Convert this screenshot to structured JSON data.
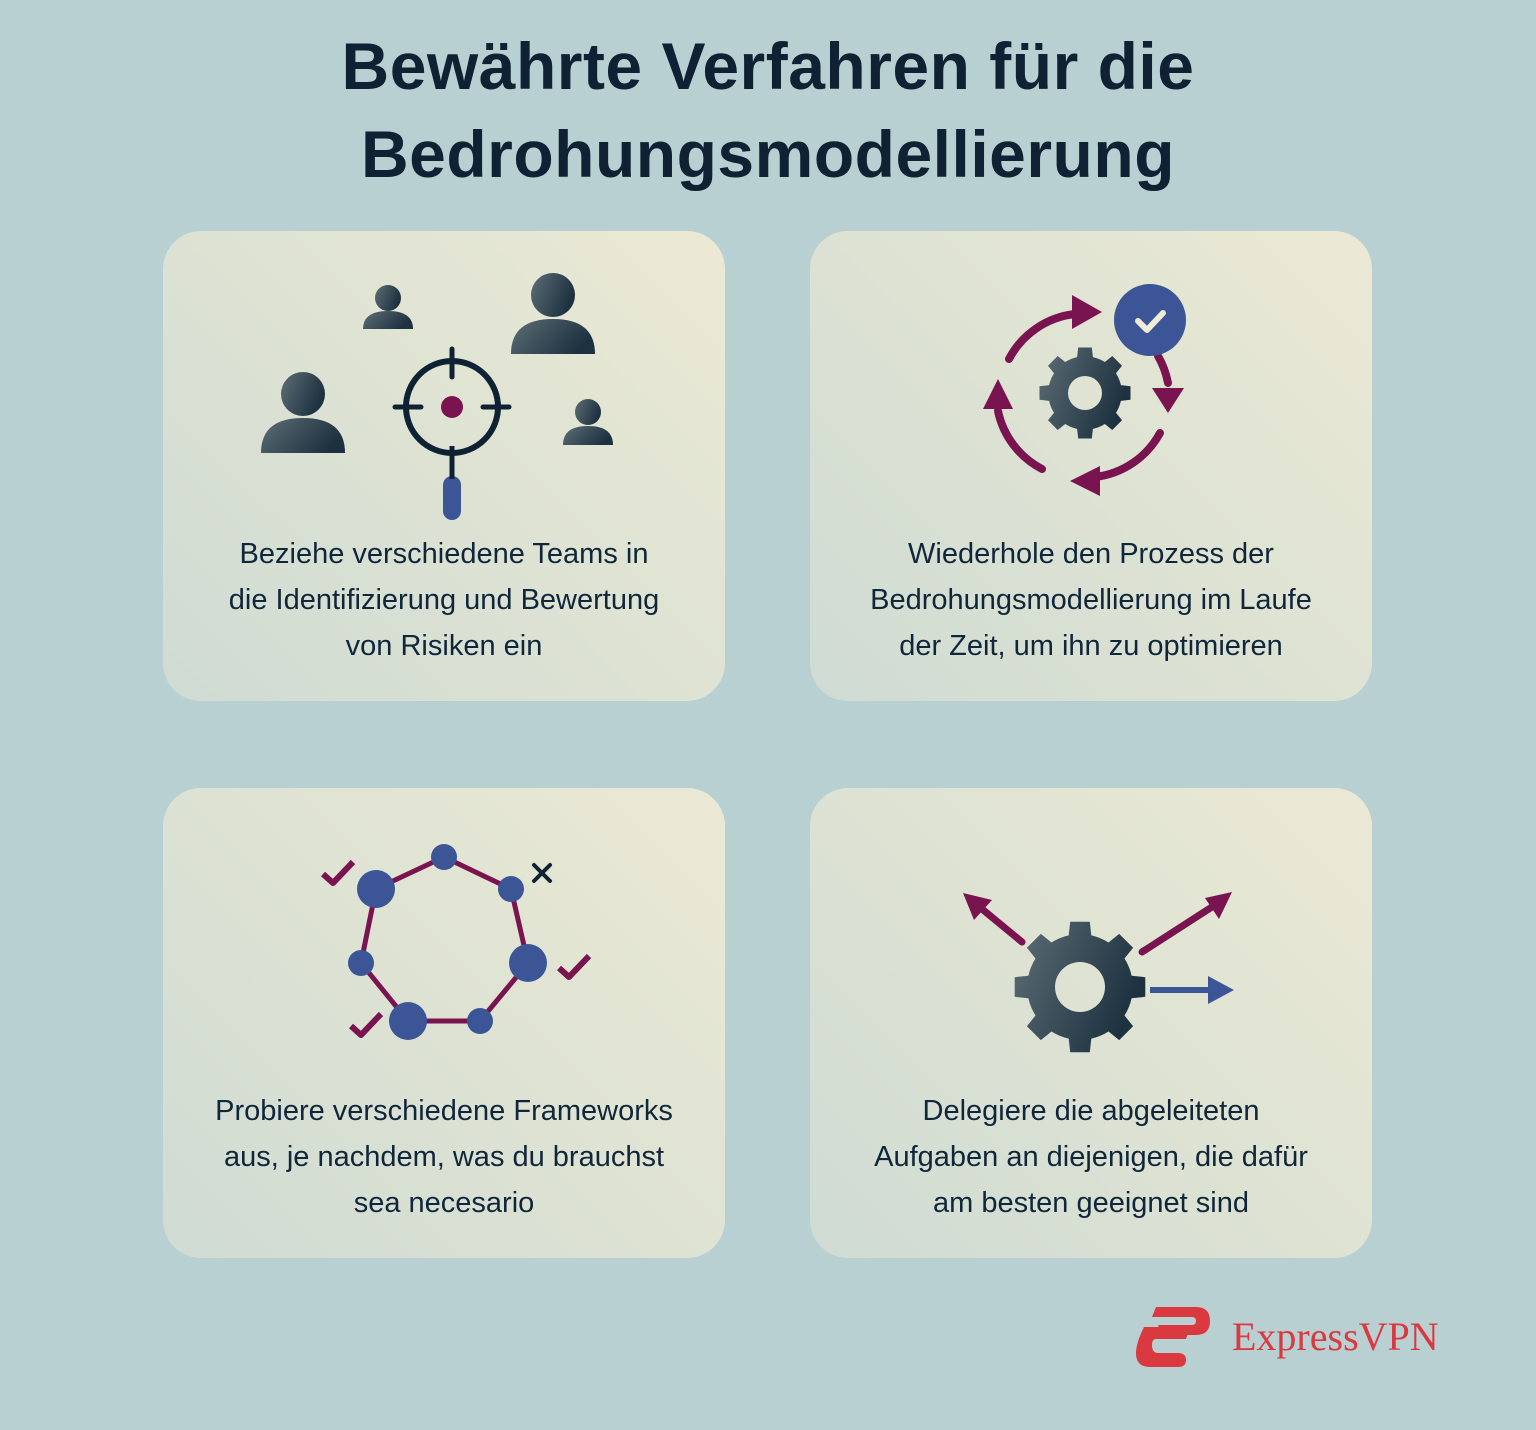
{
  "title": {
    "lines": [
      "Bewährte Verfahren für die",
      "Bedrohungsmodellierung"
    ]
  },
  "colors": {
    "background": "#b8d0d1",
    "accent_magenta": "#7a1450",
    "accent_blue": "#3c5597",
    "icon_dark": "#1f3342",
    "brand": "#da3940"
  },
  "cards": [
    {
      "icon": "team-target-icon",
      "lines": [
        "Beziehe verschiedene Teams in",
        "die Identifizierung und Bewertung",
        "von Risiken ein"
      ]
    },
    {
      "icon": "cycle-gear-check-icon",
      "lines": [
        "Wiederhole den Prozess der",
        "Bedrohungsmodellierung im Laufe",
        "der Zeit, um ihn zu optimieren"
      ]
    },
    {
      "icon": "framework-network-icon",
      "lines": [
        "Probiere verschiedene Frameworks",
        "aus, je nachdem, was du brauchst",
        "sea necesario"
      ]
    },
    {
      "icon": "gear-delegate-arrows-icon",
      "lines": [
        "Delegiere die abgeleiteten",
        "Aufgaben an diejenigen, die dafür",
        "am besten geeignet sind"
      ]
    }
  ],
  "brand": {
    "name": "ExpressVPN"
  }
}
